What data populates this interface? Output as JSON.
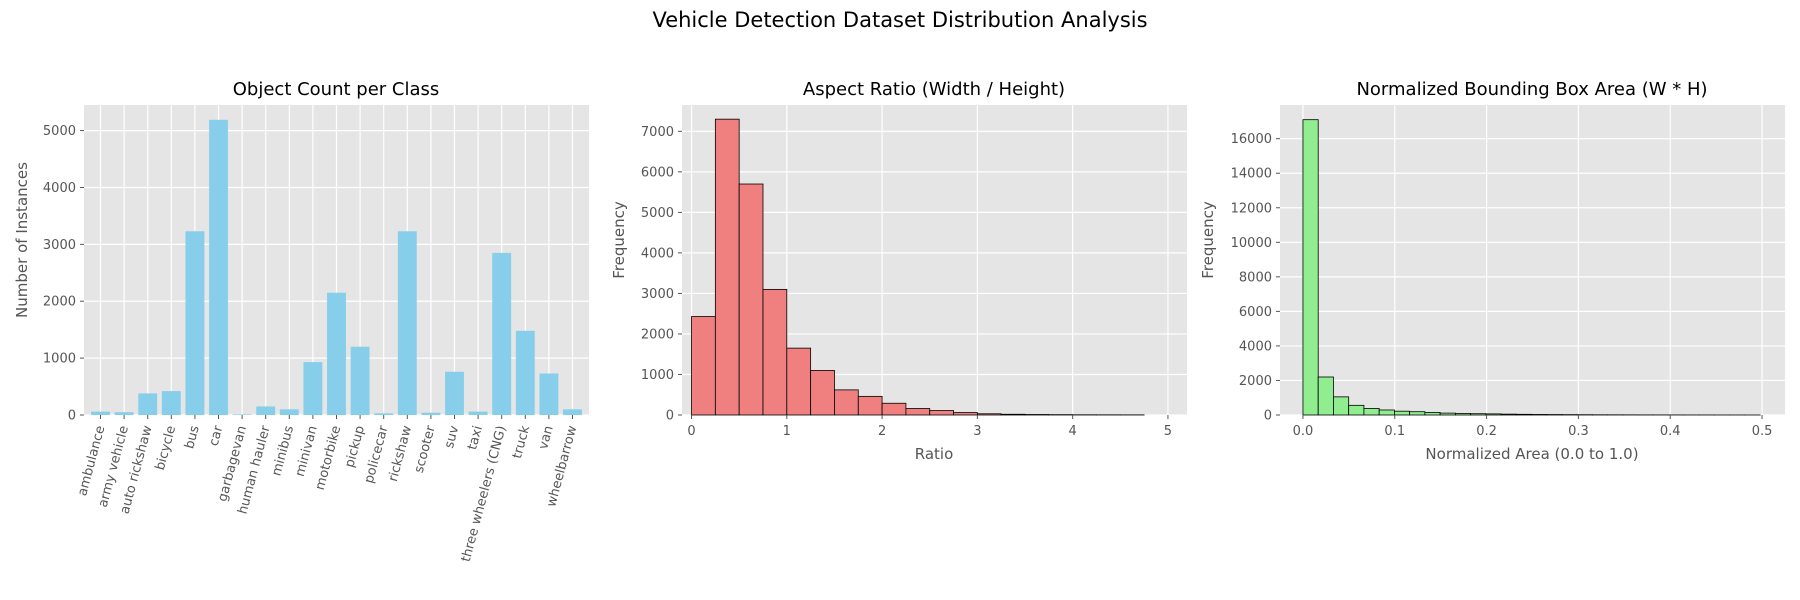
{
  "figure": {
    "title": "Vehicle Detection Dataset Distribution Analysis",
    "background": "#E5E5E5",
    "grid_color": "#FFFFFF"
  },
  "chart_data": [
    {
      "type": "bar",
      "title": "Object Count per Class",
      "xlabel": "",
      "ylabel": "Number of Instances",
      "color": "#87CEEB",
      "categories": [
        "ambulance",
        "army vehicle",
        "auto rickshaw",
        "bicycle",
        "bus",
        "car",
        "garbagevan",
        "human hauler",
        "minibus",
        "minivan",
        "motorbike",
        "pickup",
        "policecar",
        "rickshaw",
        "scooter",
        "suv",
        "taxi",
        "three wheelers (CNG)",
        "truck",
        "van",
        "wheelbarrow"
      ],
      "values": [
        60,
        50,
        380,
        420,
        3230,
        5190,
        10,
        150,
        100,
        930,
        2150,
        1200,
        30,
        3230,
        40,
        760,
        60,
        2850,
        1480,
        730,
        100
      ],
      "ylim": [
        0,
        5450
      ],
      "yticks": [
        0,
        1000,
        2000,
        3000,
        4000,
        5000
      ],
      "grid": true
    },
    {
      "type": "histogram",
      "title": "Aspect Ratio (Width / Height)",
      "xlabel": "Ratio",
      "ylabel": "Frequency",
      "color": "#F08080",
      "bin_width": 0.25,
      "bins_start": 0.0,
      "counts": [
        2430,
        7300,
        5700,
        3100,
        1650,
        1100,
        620,
        460,
        290,
        160,
        110,
        60,
        30,
        18,
        12,
        8,
        5,
        4,
        3
      ],
      "xlim": [
        -0.1,
        5.2
      ],
      "ylim": [
        0,
        7650
      ],
      "xticks": [
        0,
        1,
        2,
        3,
        4,
        5
      ],
      "yticks": [
        0,
        1000,
        2000,
        3000,
        4000,
        5000,
        6000,
        7000
      ],
      "grid": true
    },
    {
      "type": "histogram",
      "title": "Normalized Bounding Box Area (W * H)",
      "xlabel": "Normalized Area (0.0 to 1.0)",
      "ylabel": "Frequency",
      "color": "#90EE90",
      "bin_width": 0.0166,
      "bins_start": 0.0,
      "counts": [
        17100,
        2200,
        1050,
        560,
        380,
        290,
        220,
        190,
        150,
        110,
        90,
        75,
        65,
        50,
        40,
        30,
        25,
        20,
        16,
        12,
        10,
        8,
        6,
        5,
        4,
        3,
        3,
        2,
        2,
        1
      ],
      "xlim": [
        -0.025,
        0.525
      ],
      "ylim": [
        0,
        17950
      ],
      "xticks": [
        0.0,
        0.1,
        0.2,
        0.3,
        0.4,
        0.5
      ],
      "xtick_labels": [
        "0.0",
        "0.1",
        "0.2",
        "0.3",
        "0.4",
        "0.5"
      ],
      "yticks": [
        0,
        2000,
        4000,
        6000,
        8000,
        10000,
        12000,
        14000,
        16000
      ],
      "grid": true
    }
  ]
}
